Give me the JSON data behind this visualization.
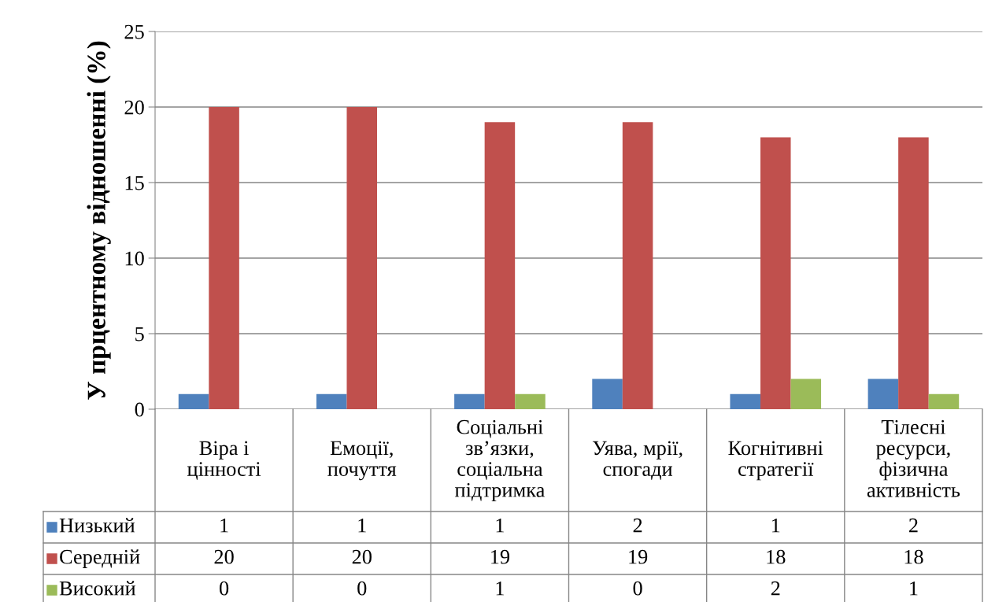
{
  "chart_data": {
    "type": "bar",
    "ylabel": "У прцентному відношенні (%)",
    "categories": [
      "Віра і\nцінності",
      "Емоції,\nпочуття",
      "Соціальні\nзв’язки,\nсоціальна\nпідтримка",
      "Уява, мрії,\nспогади",
      "Когнітивні\nстратегії",
      "Тілесні\nресурси,\nфізична\nактивність"
    ],
    "series": [
      {
        "name": "Низький",
        "color": "#4f81bd",
        "values": [
          1,
          1,
          1,
          2,
          1,
          2
        ]
      },
      {
        "name": "Середній",
        "color": "#c0504d",
        "values": [
          20,
          20,
          19,
          19,
          18,
          18
        ]
      },
      {
        "name": "Високий",
        "color": "#9bbb59",
        "values": [
          0,
          0,
          1,
          0,
          2,
          1
        ]
      }
    ],
    "ylim": [
      0,
      25
    ],
    "yticks": [
      0,
      5,
      10,
      15,
      20,
      25
    ],
    "grid": "y",
    "data_labels": true,
    "legend": "bottom left"
  }
}
